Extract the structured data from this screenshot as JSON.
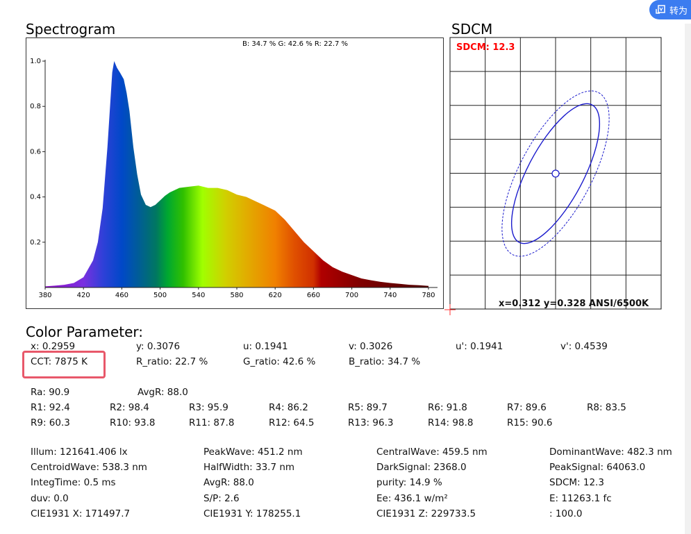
{
  "toolbar": {
    "convert_label": "转为",
    "convert_icon": "document-convert-icon"
  },
  "spectrogram": {
    "title": "Spectrogram"
  },
  "sdcm_panel": {
    "title": "SDCM"
  },
  "chart_data": [
    {
      "type": "area",
      "title": "B: 34.7 %  G: 42.6 %  R: 22.7 %",
      "xlabel": "",
      "ylabel": "",
      "xlim": [
        380,
        780
      ],
      "ylim": [
        0,
        1.0
      ],
      "xticks": [
        "380",
        "420",
        "460",
        "500",
        "540",
        "580",
        "620",
        "660",
        "700",
        "740",
        "780"
      ],
      "yticks": [
        "0.2",
        "0.4",
        "0.6",
        "0.8",
        "1.0"
      ],
      "grid": false,
      "fill": "visible-spectrum-gradient",
      "x": [
        380,
        390,
        400,
        410,
        420,
        430,
        435,
        440,
        445,
        450,
        452,
        455,
        458,
        462,
        465,
        468,
        472,
        476,
        480,
        485,
        490,
        495,
        500,
        505,
        510,
        520,
        530,
        540,
        550,
        560,
        570,
        580,
        590,
        600,
        610,
        620,
        630,
        640,
        650,
        660,
        670,
        680,
        690,
        700,
        710,
        720,
        730,
        740,
        750,
        760,
        770,
        780
      ],
      "y": [
        0.005,
        0.008,
        0.012,
        0.02,
        0.045,
        0.12,
        0.2,
        0.35,
        0.62,
        0.95,
        1.0,
        0.97,
        0.95,
        0.92,
        0.86,
        0.78,
        0.62,
        0.5,
        0.41,
        0.365,
        0.355,
        0.365,
        0.385,
        0.405,
        0.42,
        0.44,
        0.445,
        0.45,
        0.44,
        0.44,
        0.43,
        0.41,
        0.4,
        0.38,
        0.36,
        0.34,
        0.3,
        0.25,
        0.2,
        0.16,
        0.12,
        0.09,
        0.07,
        0.055,
        0.04,
        0.032,
        0.025,
        0.02,
        0.016,
        0.012,
        0.01,
        0.007
      ]
    },
    {
      "type": "scatter",
      "title": "SDCM: 12.3",
      "annotation": "x=0.312 y=0.328 ANSI/6500K",
      "grid": true,
      "grid_columns": 6,
      "grid_rows": 8,
      "ellipse_color": "#1a1acc",
      "label_color": "#ff0000"
    }
  ],
  "color_parameter": {
    "title": "Color Parameter:",
    "row1": [
      "x: 0.2959",
      "y: 0.3076",
      "u: 0.1941",
      "v: 0.3026",
      "u': 0.1941",
      "v': 0.4539"
    ],
    "row2": [
      "CCT: 7875 K",
      "R_ratio: 22.7 %",
      "G_ratio: 42.6 %",
      "B_ratio: 34.7 %"
    ],
    "row3": [
      "Ra: 90.9",
      "AvgR: 88.0"
    ],
    "r_row1": [
      "R1: 92.4",
      "R2: 98.4",
      "R3: 95.9",
      "R4: 86.2",
      "R5: 89.7",
      "R6: 91.8",
      "R7: 89.6",
      "R8: 83.5"
    ],
    "r_row2": [
      "R9: 60.3",
      "R10: 93.8",
      "R11: 87.8",
      "R12: 64.5",
      "R13: 96.3",
      "R14: 98.8",
      "R15: 90.6"
    ],
    "details": [
      [
        "Illum: 121641.406 lx",
        "PeakWave: 451.2 nm",
        "CentralWave: 459.5 nm",
        "DominantWave: 482.3 nm"
      ],
      [
        "CentroidWave: 538.3 nm",
        "HalfWidth: 33.7 nm",
        "DarkSignal: 2368.0",
        "PeakSignal: 64063.0"
      ],
      [
        "IntegTime: 0.5 ms",
        "AvgR: 88.0",
        "purity: 14.9 %",
        "SDCM: 12.3"
      ],
      [
        "duv: 0.0",
        "S/P: 2.6",
        "Ee: 436.1 w/m²",
        "E: 11263.1 fc"
      ],
      [
        "CIE1931 X: 171497.7",
        "CIE1931 Y: 178255.1",
        "CIE1931 Z: 229733.5",
        ": 100.0"
      ]
    ],
    "highlight_color": "#e8586a"
  }
}
